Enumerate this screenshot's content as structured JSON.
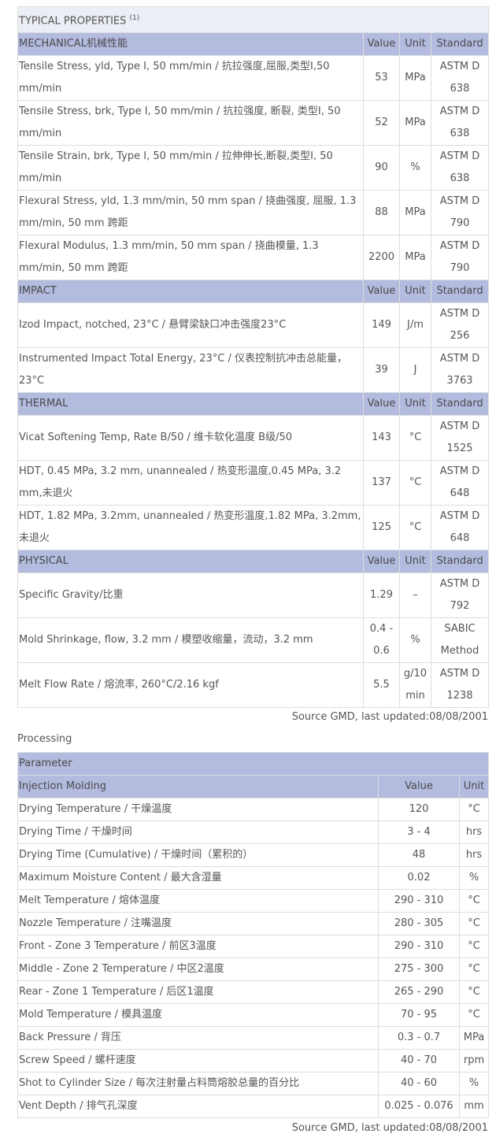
{
  "typical_properties": {
    "title": "TYPICAL PROPERTIES",
    "note": "(1)",
    "sections": [
      {
        "name": "MECHANICAL机械性能",
        "headers": [
          "Value",
          "Unit",
          "Standard"
        ],
        "rows": [
          [
            "Tensile Stress, yld, Type I, 50 mm/min / 抗拉强度,屈服,类型I,50 mm/min",
            "53",
            "MPa",
            "ASTM D 638"
          ],
          [
            "Tensile Stress, brk, Type I, 50 mm/min / 抗拉强度, 断裂, 类型I, 50 mm/min",
            "52",
            "MPa",
            "ASTM D 638"
          ],
          [
            "Tensile Strain, brk, Type I, 50 mm/min / 拉伸伸长,断裂,类型I, 50 mm/min",
            "90",
            "%",
            "ASTM D 638"
          ],
          [
            "Flexural Stress, yld, 1.3 mm/min, 50 mm span / 挠曲强度, 屈服, 1.3 mm/min, 50 mm 跨距",
            "88",
            "MPa",
            "ASTM D 790"
          ],
          [
            "Flexural Modulus, 1.3 mm/min, 50 mm span / 挠曲模量, 1.3 mm/min, 50 mm 跨距",
            "2200",
            "MPa",
            "ASTM D 790"
          ]
        ]
      },
      {
        "name": "IMPACT",
        "headers": [
          "Value",
          "Unit",
          "Standard"
        ],
        "rows": [
          [
            "Izod Impact, notched, 23°C / 悬臂梁缺口冲击强度23°C",
            "149",
            "J/m",
            "ASTM D 256"
          ],
          [
            "Instrumented Impact Total Energy, 23°C / 仪表控制抗冲击总能量，23°C",
            "39",
            "J",
            "ASTM D 3763"
          ]
        ]
      },
      {
        "name": "THERMAL",
        "headers": [
          "Value",
          "Unit",
          "Standard"
        ],
        "rows": [
          [
            "Vicat Softening Temp, Rate B/50 / 维卡软化温度 B级/50",
            "143",
            "°C",
            "ASTM D 1525"
          ],
          [
            "HDT, 0.45 MPa, 3.2 mm, unannealed / 热变形温度,0.45 MPa, 3.2 mm,未退火",
            "137",
            "°C",
            "ASTM D 648"
          ],
          [
            "HDT, 1.82 MPa, 3.2mm, unannealed / 热变形温度,1.82 MPa, 3.2mm,未退火",
            "125",
            "°C",
            "ASTM D 648"
          ]
        ]
      },
      {
        "name": "PHYSICAL",
        "headers": [
          "Value",
          "Unit",
          "Standard"
        ],
        "rows": [
          [
            "Specific Gravity/比重",
            "1.29",
            "–",
            "ASTM D 792"
          ],
          [
            "Mold Shrinkage, flow, 3.2 mm / 模塑收缩量，流动，3.2 mm",
            "0.4 - 0.6",
            "%",
            "SABIC Method"
          ],
          [
            "Melt Flow Rate / 熔流率, 260°C/2.16 kgf",
            "5.5",
            "g/10 min",
            "ASTM D 1238"
          ]
        ]
      }
    ]
  },
  "source_1": "Source GMD, last updated:08/08/2001",
  "processing": {
    "label": "Processing",
    "header": "Parameter",
    "section": "Injection Molding",
    "headers": [
      "Value",
      "Unit"
    ],
    "rows": [
      [
        "Drying Temperature / 干燥温度",
        "120",
        "°C"
      ],
      [
        "Drying Time / 干燥时间",
        "3 - 4",
        "hrs"
      ],
      [
        "Drying Time (Cumulative) / 干燥时间（累积的）",
        "48",
        "hrs"
      ],
      [
        "Maximum Moisture Content / 最大含湿量",
        "0.02",
        "%"
      ],
      [
        "Melt Temperature / 熔体温度",
        "290 - 310",
        "°C"
      ],
      [
        "Nozzle Temperature / 注嘴温度",
        "280 - 305",
        "°C"
      ],
      [
        "Front - Zone 3 Temperature / 前区3温度",
        "290 - 310",
        "°C"
      ],
      [
        "Middle - Zone 2 Temperature / 中区2温度",
        "275 - 300",
        "°C"
      ],
      [
        "Rear - Zone 1 Temperature / 后区1温度",
        "265 - 290",
        "°C"
      ],
      [
        "Mold Temperature / 模具温度",
        "70 - 95",
        "°C"
      ],
      [
        "Back Pressure / 背压",
        "0.3 - 0.7",
        "MPa"
      ],
      [
        "Screw Speed / 螺杆速度",
        "40 - 70",
        "rpm"
      ],
      [
        "Shot to Cylinder Size / 每次注射量占料筒熔胶总量的百分比",
        "40 - 60",
        "%"
      ],
      [
        "Vent Depth / 排气孔深度",
        "0.025 - 0.076",
        "mm"
      ]
    ]
  },
  "source_2": "Source GMD, last updated:08/08/2001"
}
